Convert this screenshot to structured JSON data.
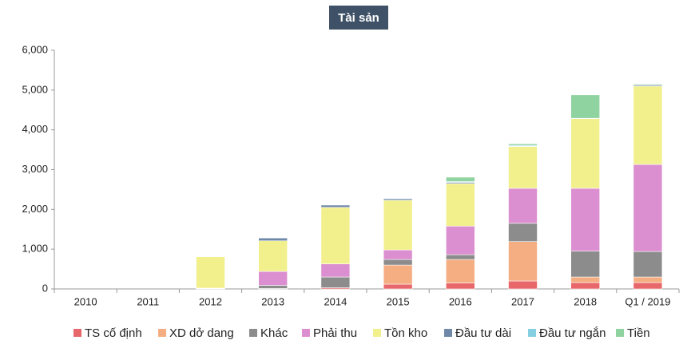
{
  "chart_data": {
    "type": "stacked-bar",
    "title": "Tài sản",
    "categories": [
      "2010",
      "2011",
      "2012",
      "2013",
      "2014",
      "2015",
      "2016",
      "2017",
      "2018",
      "Q1 / 2019"
    ],
    "series": [
      {
        "name": "TS cố định",
        "color": "#e8676a",
        "values": [
          0,
          0,
          0,
          10,
          30,
          120,
          150,
          200,
          160,
          160
        ]
      },
      {
        "name": "XD dở dang",
        "color": "#f5ad82",
        "values": [
          0,
          0,
          0,
          0,
          0,
          480,
          590,
          990,
          140,
          140
        ]
      },
      {
        "name": "Khác",
        "color": "#8c8c8c",
        "values": [
          0,
          0,
          10,
          80,
          270,
          140,
          120,
          460,
          650,
          640
        ]
      },
      {
        "name": "Phải thu",
        "color": "#dc8fd0",
        "values": [
          0,
          0,
          10,
          350,
          330,
          240,
          720,
          880,
          1580,
          2190
        ]
      },
      {
        "name": "Tồn kho",
        "color": "#f2f08c",
        "values": [
          0,
          0,
          790,
          770,
          1420,
          1250,
          1070,
          1050,
          1750,
          1970
        ]
      },
      {
        "name": "Đầu tư dài",
        "color": "#6f88a8",
        "values": [
          0,
          0,
          0,
          70,
          60,
          40,
          30,
          10,
          10,
          30
        ]
      },
      {
        "name": "Đầu tư ngắn",
        "color": "#86cfe0",
        "values": [
          0,
          0,
          0,
          0,
          10,
          0,
          20,
          20,
          0,
          0
        ]
      },
      {
        "name": "Tiền",
        "color": "#8fd3a0",
        "values": [
          0,
          0,
          10,
          0,
          10,
          10,
          110,
          40,
          590,
          20
        ]
      }
    ],
    "ylim": [
      0,
      6000
    ],
    "yticks": [
      0,
      {
        "value": 1000,
        "label": "1,000"
      },
      {
        "value": 2000,
        "label": "2,000"
      },
      {
        "value": 3000,
        "label": "3,000"
      },
      {
        "value": 4000,
        "label": "4,000"
      },
      {
        "value": 5000,
        "label": "5,000"
      },
      {
        "value": 6000,
        "label": "6,000"
      }
    ],
    "grid": false
  }
}
